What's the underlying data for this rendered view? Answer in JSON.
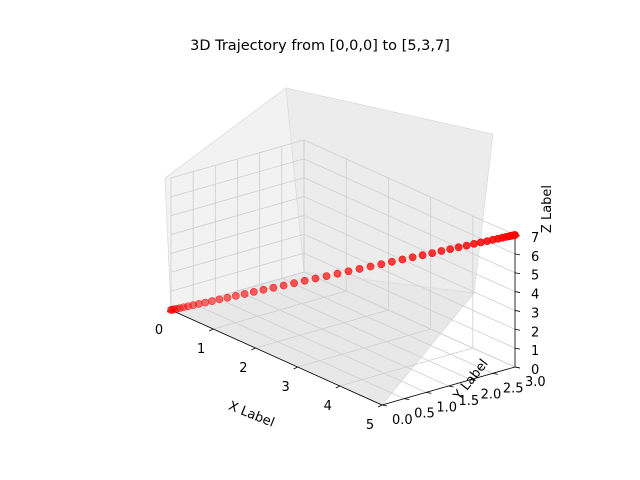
{
  "chart_data": {
    "type": "scatter",
    "projection": "3d",
    "title": "3D Trajectory from [0,0,0] to [5,3,7]",
    "xlabel": "X Label",
    "ylabel": "Y Label",
    "zlabel": "Z Label",
    "xlim": [
      0,
      5
    ],
    "ylim": [
      0,
      3
    ],
    "zlim": [
      0,
      7
    ],
    "xticks": [
      "0",
      "1",
      "2",
      "3",
      "4",
      "5"
    ],
    "yticks": [
      "0.0",
      "0.5",
      "1.0",
      "1.5",
      "2.0",
      "2.5",
      "3.0"
    ],
    "zticks": [
      "0",
      "1",
      "2",
      "3",
      "4",
      "5",
      "6",
      "7"
    ],
    "grid": true,
    "marker_color": "#ff0000",
    "start": [
      0,
      0,
      0
    ],
    "end": [
      5,
      3,
      7
    ],
    "points": 50,
    "spacing": "ease-in-out along the straight line (denser near both ends)"
  }
}
